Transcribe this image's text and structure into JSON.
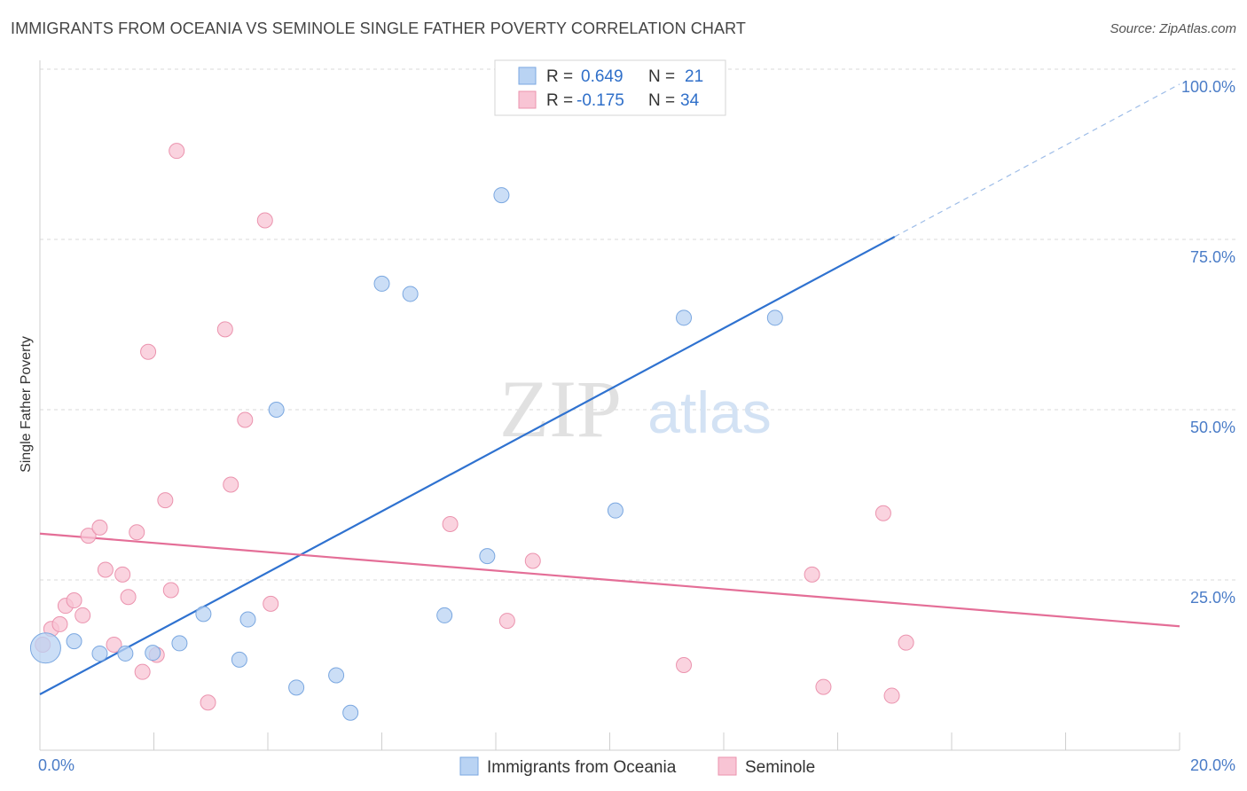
{
  "header": {
    "title": "IMMIGRANTS FROM OCEANIA VS SEMINOLE SINGLE FATHER POVERTY CORRELATION CHART",
    "source": "Source: ZipAtlas.com"
  },
  "watermark": {
    "zip": "ZIP",
    "atlas": "atlas"
  },
  "legend": {
    "rows": [
      {
        "r_label": "R =",
        "r_value": "0.649",
        "n_label": "N =",
        "n_value": "21"
      },
      {
        "r_label": "R =",
        "r_value": "-0.175",
        "n_label": "N =",
        "n_value": "34"
      }
    ]
  },
  "bottom_legend": {
    "items": [
      {
        "label": "Immigrants from Oceania"
      },
      {
        "label": "Seminole"
      }
    ]
  },
  "colors": {
    "blue_fill": "#b9d3f3",
    "blue_stroke": "#7aa7e0",
    "blue_line": "#2f72d0",
    "pink_fill": "#f8c4d4",
    "pink_stroke": "#eb93ae",
    "pink_line": "#e46e97"
  },
  "chart_data": {
    "type": "scatter",
    "title": "IMMIGRANTS FROM OCEANIA VS SEMINOLE SINGLE FATHER POVERTY CORRELATION CHART",
    "xlabel": "",
    "ylabel": "Single Father Poverty",
    "xlim": [
      0,
      20
    ],
    "ylim": [
      0,
      100
    ],
    "x_tick_labels": [
      "0.0%",
      "20.0%"
    ],
    "y_tick_labels": [
      "25.0%",
      "50.0%",
      "75.0%",
      "100.0%"
    ],
    "y_ticks": [
      25,
      50,
      75,
      100
    ],
    "grid": true,
    "legend_position": "top-center",
    "series": [
      {
        "name": "Immigrants from Oceania",
        "color": "#b9d3f3",
        "r": 0.649,
        "n": 21,
        "trend": {
          "x": [
            0,
            15
          ],
          "y": [
            8.2,
            75.4
          ],
          "dashed_to": [
            20,
            97.8
          ]
        },
        "points": [
          [
            0.1,
            15.0,
            "large"
          ],
          [
            0.6,
            16.0
          ],
          [
            1.05,
            14.2
          ],
          [
            1.5,
            14.2
          ],
          [
            1.98,
            14.3
          ],
          [
            2.45,
            15.7
          ],
          [
            2.87,
            20.0
          ],
          [
            3.5,
            13.3
          ],
          [
            3.65,
            19.2
          ],
          [
            4.15,
            50.0
          ],
          [
            4.5,
            9.2
          ],
          [
            5.2,
            11.0
          ],
          [
            5.45,
            5.5
          ],
          [
            6.0,
            68.5
          ],
          [
            6.5,
            67.0
          ],
          [
            7.1,
            19.8
          ],
          [
            7.85,
            28.5
          ],
          [
            8.1,
            81.5
          ],
          [
            10.1,
            35.2
          ],
          [
            11.3,
            63.5
          ],
          [
            12.9,
            63.5
          ]
        ]
      },
      {
        "name": "Seminole",
        "color": "#f8c4d4",
        "r": -0.175,
        "n": 34,
        "trend": {
          "x": [
            0,
            20
          ],
          "y": [
            31.8,
            18.2
          ]
        },
        "points": [
          [
            0.05,
            15.5
          ],
          [
            0.2,
            17.8
          ],
          [
            0.35,
            18.5
          ],
          [
            0.45,
            21.2
          ],
          [
            0.6,
            22.0
          ],
          [
            0.75,
            19.8
          ],
          [
            0.85,
            31.5
          ],
          [
            1.05,
            32.7
          ],
          [
            1.15,
            26.5
          ],
          [
            1.3,
            15.5
          ],
          [
            1.45,
            25.8
          ],
          [
            1.55,
            22.5
          ],
          [
            1.7,
            32.0
          ],
          [
            1.8,
            11.5
          ],
          [
            1.9,
            58.5
          ],
          [
            2.05,
            14.0
          ],
          [
            2.2,
            36.7
          ],
          [
            2.3,
            23.5
          ],
          [
            2.4,
            88.0
          ],
          [
            2.95,
            7.0
          ],
          [
            3.25,
            61.8
          ],
          [
            3.35,
            39.0
          ],
          [
            3.6,
            48.5
          ],
          [
            3.95,
            77.8
          ],
          [
            4.05,
            21.5
          ],
          [
            7.2,
            33.2
          ],
          [
            8.2,
            19.0
          ],
          [
            8.65,
            27.8
          ],
          [
            11.3,
            12.5
          ],
          [
            13.55,
            25.8
          ],
          [
            13.75,
            9.3
          ],
          [
            14.8,
            34.8
          ],
          [
            14.95,
            8.0
          ],
          [
            15.2,
            15.8
          ]
        ]
      }
    ]
  }
}
